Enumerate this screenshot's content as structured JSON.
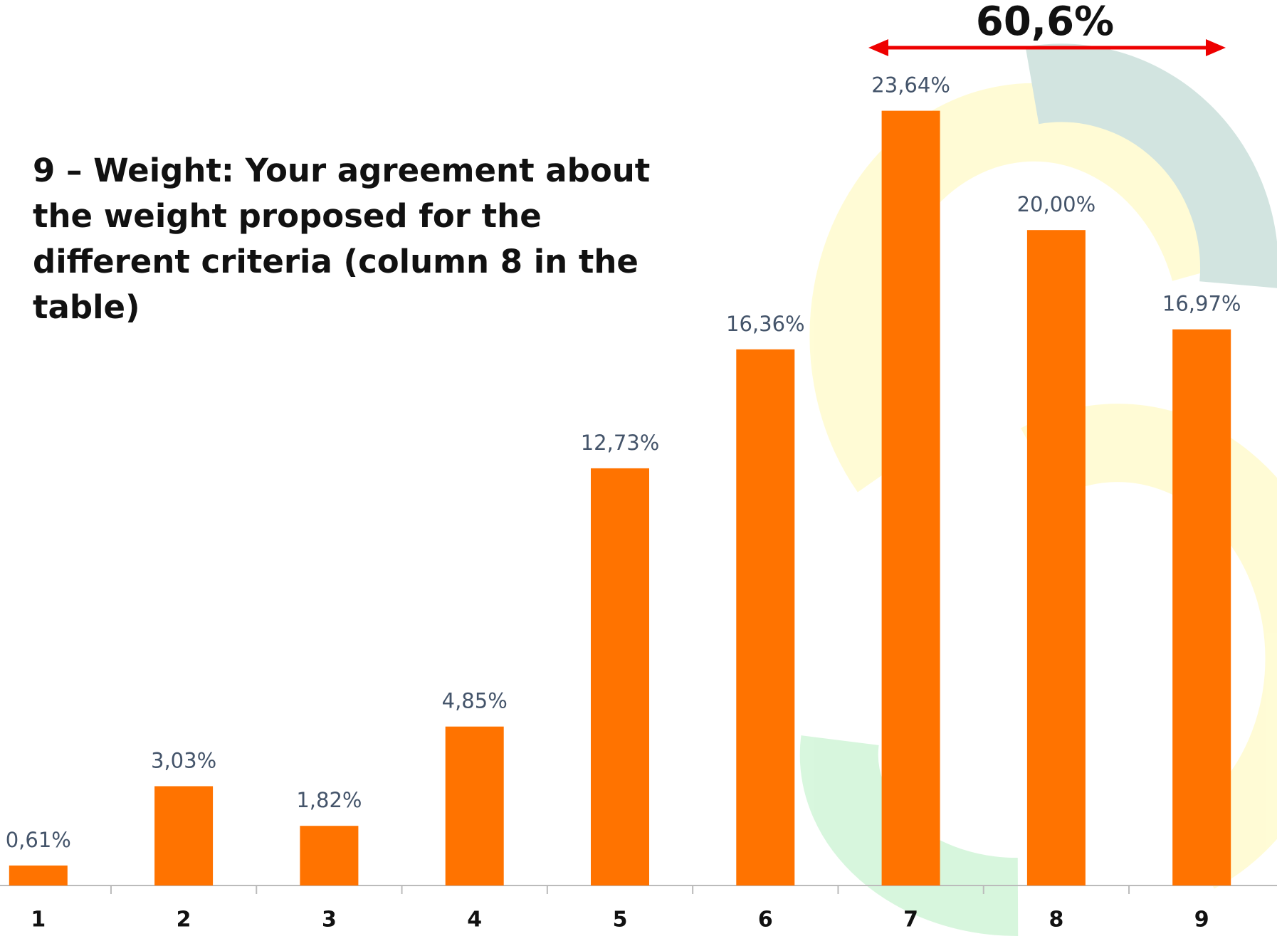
{
  "chart_data": {
    "type": "bar",
    "title": "9 –  Weight: Your agreement about the weight proposed for the different criteria (column 8 in the table)",
    "annotation": "60,6%",
    "categories": [
      "1",
      "2",
      "3",
      "4",
      "5",
      "6",
      "7",
      "8",
      "9"
    ],
    "values": [
      0.61,
      3.03,
      1.82,
      4.85,
      12.73,
      16.36,
      23.64,
      20.0,
      16.97
    ],
    "value_labels": [
      "0,61%",
      "3,03%",
      "1,82%",
      "4,85%",
      "12,73%",
      "16,36%",
      "23,64%",
      "20,00%",
      "16,97%"
    ],
    "color": "#ff7300"
  }
}
